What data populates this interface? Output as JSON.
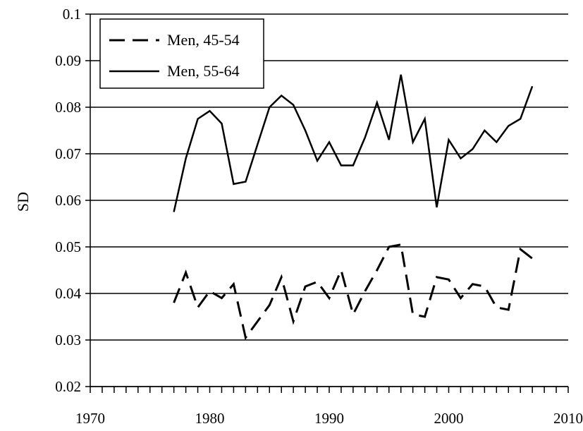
{
  "chart_data": {
    "type": "line",
    "title": "",
    "xlabel": "",
    "ylabel": "SD",
    "xlim": [
      1970,
      2010
    ],
    "ylim": [
      0.02,
      0.1
    ],
    "grid": "horizontal",
    "legend_position": "top-left",
    "x_ticks": [
      {
        "value": 1970,
        "label": "1970"
      },
      {
        "value": 1980,
        "label": "1980"
      },
      {
        "value": 1990,
        "label": "1990"
      },
      {
        "value": 2000,
        "label": "2000"
      },
      {
        "value": 2010,
        "label": "2010"
      }
    ],
    "y_ticks": [
      {
        "value": 0.02,
        "label": "0.02"
      },
      {
        "value": 0.03,
        "label": "0.03"
      },
      {
        "value": 0.04,
        "label": "0.04"
      },
      {
        "value": 0.05,
        "label": "0.05"
      },
      {
        "value": 0.06,
        "label": "0.06"
      },
      {
        "value": 0.07,
        "label": "0.07"
      },
      {
        "value": 0.08,
        "label": "0.08"
      },
      {
        "value": 0.09,
        "label": "0.09"
      },
      {
        "value": 0.1,
        "label": "0.1"
      }
    ],
    "x": [
      1977,
      1978,
      1979,
      1980,
      1981,
      1982,
      1983,
      1984,
      1985,
      1986,
      1987,
      1988,
      1989,
      1990,
      1991,
      1992,
      1993,
      1994,
      1995,
      1996,
      1997,
      1998,
      1999,
      2000,
      2001,
      2002,
      2003,
      2004,
      2005,
      2006,
      2007
    ],
    "series": [
      {
        "name": "Men, 45-54",
        "style": "dashed",
        "color": "#000000",
        "values": [
          0.038,
          0.0445,
          0.037,
          0.0405,
          0.039,
          0.042,
          0.0305,
          0.034,
          0.0375,
          0.0435,
          0.034,
          0.0415,
          0.0425,
          0.039,
          0.045,
          0.0355,
          0.0405,
          0.045,
          0.05,
          0.0505,
          0.0355,
          0.035,
          0.0435,
          0.043,
          0.039,
          0.042,
          0.0415,
          0.037,
          0.0365,
          0.0495,
          0.0475
        ]
      },
      {
        "name": "Men, 55-64",
        "style": "solid",
        "color": "#000000",
        "values": [
          0.0575,
          0.069,
          0.0775,
          0.0792,
          0.0765,
          0.0635,
          0.064,
          0.072,
          0.08,
          0.0825,
          0.0805,
          0.075,
          0.0685,
          0.0725,
          0.0675,
          0.0675,
          0.0735,
          0.081,
          0.073,
          0.087,
          0.0725,
          0.0775,
          0.0585,
          0.073,
          0.069,
          0.071,
          0.075,
          0.0725,
          0.076,
          0.0775,
          0.0845
        ]
      }
    ]
  }
}
